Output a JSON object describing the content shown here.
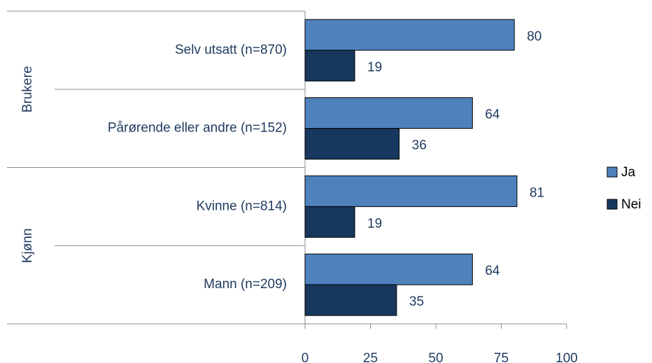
{
  "chart_data": {
    "type": "bar",
    "orientation": "horizontal",
    "groups": [
      {
        "label": "Brukere",
        "categories": [
          "Selv utsatt  (n=870)",
          "Pårørende eller andre (n=152)"
        ]
      },
      {
        "label": "Kjønn",
        "categories": [
          "Kvinne (n=814)",
          "Mann (n=209)"
        ]
      }
    ],
    "series": [
      {
        "name": "Ja",
        "color": "#4f81bd",
        "values": [
          80,
          64,
          81,
          64
        ]
      },
      {
        "name": "Nei",
        "color": "#17375e",
        "values": [
          19,
          36,
          19,
          35
        ]
      }
    ],
    "xlim": [
      0,
      100
    ],
    "xticks": [
      0,
      25,
      50,
      75,
      100
    ],
    "legend": "right"
  }
}
